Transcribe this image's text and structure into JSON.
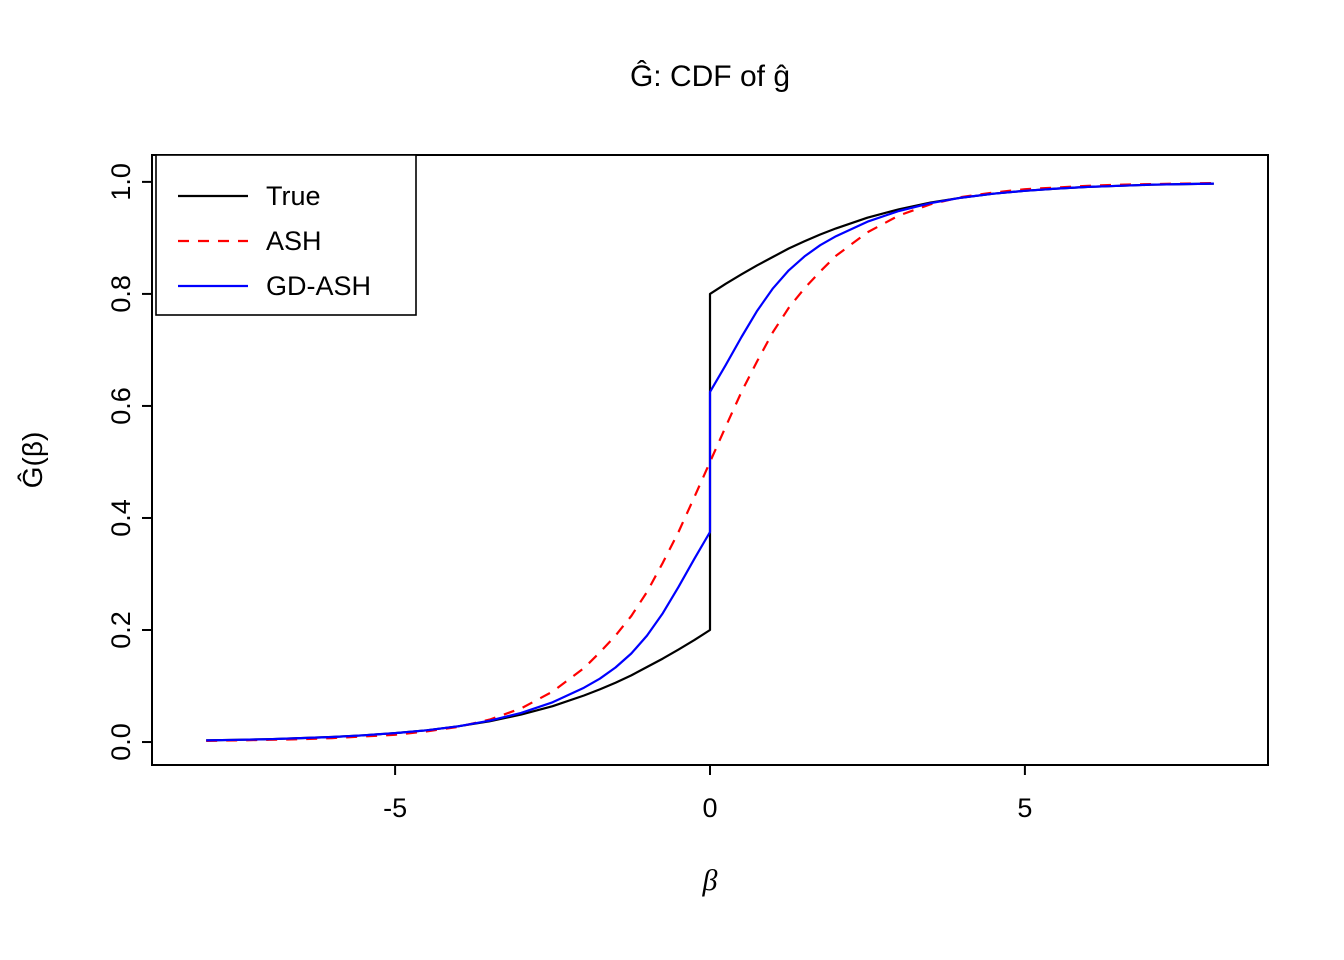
{
  "figure_title": "Ĝ: CDF of ĝ",
  "chart_data": {
    "type": "line",
    "title": "Ĝ: CDF of ĝ",
    "xlabel": "β",
    "ylabel": "Ĝ(β)",
    "xlim": [
      -8.86,
      8.86
    ],
    "ylim": [
      -0.041,
      1.048
    ],
    "x_ticks": [
      -5,
      0,
      5
    ],
    "x_tick_labels": [
      "-5",
      "0",
      "5"
    ],
    "y_ticks": [
      0.0,
      0.2,
      0.4,
      0.6,
      0.8,
      1.0
    ],
    "y_tick_labels": [
      "0.0",
      "0.2",
      "0.4",
      "0.6",
      "0.8",
      "1.0"
    ],
    "grid": false,
    "legend_position": "top-left",
    "legend_entries": [
      "True",
      "ASH",
      "GD-ASH"
    ],
    "series": [
      {
        "name": "True",
        "color": "#000000",
        "dash": "solid",
        "note": "true mixture CDF with point mass at 0: jump from 0.2 to 0.8",
        "points": [
          [
            -8,
            0.003
          ],
          [
            -7.5,
            0.004
          ],
          [
            -7,
            0.005
          ],
          [
            -6.5,
            0.007
          ],
          [
            -6,
            0.009
          ],
          [
            -5.5,
            0.012
          ],
          [
            -5,
            0.016
          ],
          [
            -4.5,
            0.021
          ],
          [
            -4,
            0.028
          ],
          [
            -3.5,
            0.037
          ],
          [
            -3,
            0.049
          ],
          [
            -2.5,
            0.064
          ],
          [
            -2,
            0.083
          ],
          [
            -1.75,
            0.094
          ],
          [
            -1.5,
            0.106
          ],
          [
            -1.25,
            0.119
          ],
          [
            -1,
            0.134
          ],
          [
            -0.75,
            0.149
          ],
          [
            -0.5,
            0.165
          ],
          [
            -0.25,
            0.182
          ],
          [
            0,
            0.2
          ],
          [
            0,
            0.8
          ],
          [
            0.25,
            0.818
          ],
          [
            0.5,
            0.835
          ],
          [
            0.75,
            0.851
          ],
          [
            1,
            0.866
          ],
          [
            1.25,
            0.881
          ],
          [
            1.5,
            0.894
          ],
          [
            1.75,
            0.906
          ],
          [
            2,
            0.917
          ],
          [
            2.5,
            0.936
          ],
          [
            3,
            0.951
          ],
          [
            3.5,
            0.963
          ],
          [
            4,
            0.972
          ],
          [
            4.5,
            0.979
          ],
          [
            5,
            0.984
          ],
          [
            5.5,
            0.988
          ],
          [
            6,
            0.991
          ],
          [
            6.5,
            0.993
          ],
          [
            7,
            0.995
          ],
          [
            7.5,
            0.996
          ],
          [
            8,
            0.997
          ]
        ]
      },
      {
        "name": "ASH",
        "color": "#ff0000",
        "dash": "dashed",
        "note": "smooth estimated CDF, no jump, F(0)=0.5",
        "points": [
          [
            -8,
            0.002
          ],
          [
            -7.5,
            0.003
          ],
          [
            -7,
            0.004
          ],
          [
            -6.5,
            0.005
          ],
          [
            -6,
            0.007
          ],
          [
            -5.5,
            0.01
          ],
          [
            -5,
            0.013
          ],
          [
            -4.5,
            0.019
          ],
          [
            -4,
            0.027
          ],
          [
            -3.5,
            0.04
          ],
          [
            -3,
            0.06
          ],
          [
            -2.5,
            0.09
          ],
          [
            -2,
            0.132
          ],
          [
            -1.75,
            0.16
          ],
          [
            -1.5,
            0.19
          ],
          [
            -1.25,
            0.225
          ],
          [
            -1,
            0.268
          ],
          [
            -0.75,
            0.32
          ],
          [
            -0.5,
            0.375
          ],
          [
            -0.25,
            0.437
          ],
          [
            0,
            0.5
          ],
          [
            0.25,
            0.563
          ],
          [
            0.5,
            0.625
          ],
          [
            0.75,
            0.68
          ],
          [
            1,
            0.732
          ],
          [
            1.25,
            0.775
          ],
          [
            1.5,
            0.81
          ],
          [
            1.75,
            0.84
          ],
          [
            2,
            0.868
          ],
          [
            2.5,
            0.91
          ],
          [
            3,
            0.94
          ],
          [
            3.5,
            0.96
          ],
          [
            4,
            0.973
          ],
          [
            4.5,
            0.981
          ],
          [
            5,
            0.987
          ],
          [
            5.5,
            0.99
          ],
          [
            6,
            0.993
          ],
          [
            6.5,
            0.995
          ],
          [
            7,
            0.996
          ],
          [
            7.5,
            0.997
          ],
          [
            8,
            0.998
          ]
        ]
      },
      {
        "name": "GD-ASH",
        "color": "#0000ff",
        "dash": "solid",
        "note": "estimated CDF with jump at 0 from 0.375 to 0.625",
        "points": [
          [
            -8,
            0.003
          ],
          [
            -7.5,
            0.004
          ],
          [
            -7,
            0.005
          ],
          [
            -6.5,
            0.007
          ],
          [
            -6,
            0.009
          ],
          [
            -5.5,
            0.012
          ],
          [
            -5,
            0.016
          ],
          [
            -4.5,
            0.021
          ],
          [
            -4,
            0.028
          ],
          [
            -3.5,
            0.038
          ],
          [
            -3,
            0.052
          ],
          [
            -2.5,
            0.071
          ],
          [
            -2,
            0.097
          ],
          [
            -1.75,
            0.113
          ],
          [
            -1.5,
            0.133
          ],
          [
            -1.25,
            0.158
          ],
          [
            -1,
            0.19
          ],
          [
            -0.75,
            0.23
          ],
          [
            -0.5,
            0.277
          ],
          [
            -0.25,
            0.327
          ],
          [
            0,
            0.375
          ],
          [
            0,
            0.625
          ],
          [
            0.25,
            0.673
          ],
          [
            0.5,
            0.723
          ],
          [
            0.75,
            0.77
          ],
          [
            1,
            0.81
          ],
          [
            1.25,
            0.842
          ],
          [
            1.5,
            0.867
          ],
          [
            1.75,
            0.887
          ],
          [
            2,
            0.903
          ],
          [
            2.5,
            0.929
          ],
          [
            3,
            0.948
          ],
          [
            3.5,
            0.962
          ],
          [
            4,
            0.972
          ],
          [
            4.5,
            0.979
          ],
          [
            5,
            0.984
          ],
          [
            5.5,
            0.988
          ],
          [
            6,
            0.991
          ],
          [
            6.5,
            0.993
          ],
          [
            7,
            0.995
          ],
          [
            7.5,
            0.996
          ],
          [
            8,
            0.997
          ]
        ]
      }
    ]
  }
}
